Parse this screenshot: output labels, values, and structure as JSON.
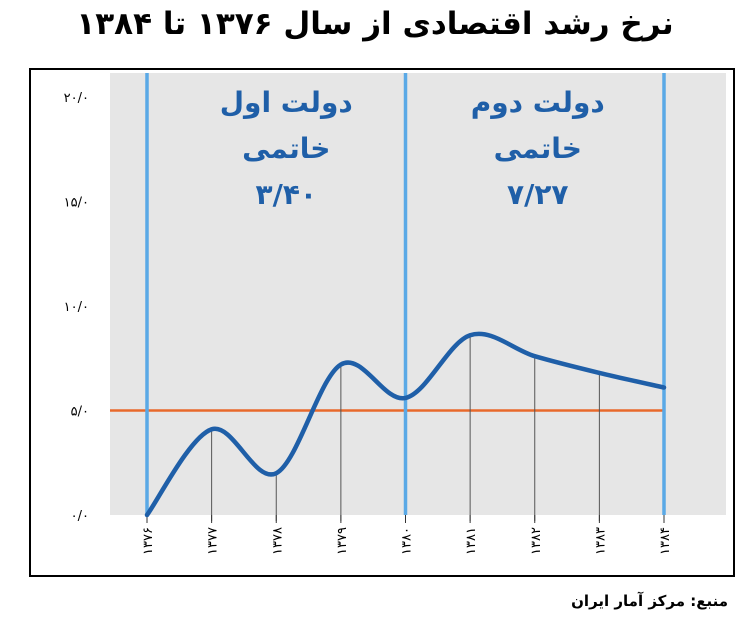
{
  "title": "نرخ رشد اقتصادی از سال ۱۳۷۶ تا ۱۳۸۴",
  "source": "منبع: مرکز آمار ایران",
  "colors": {
    "curve": "#1f5fa8",
    "separator": "#5aa9e6",
    "average_line": "#e8692b",
    "panel": "#e6e6e6",
    "annotation": "#1f5fa8"
  },
  "chart_data": {
    "type": "line",
    "x": [
      "۱۳۷۶",
      "۱۳۷۷",
      "۱۳۷۸",
      "۱۳۷۹",
      "۱۳۸۰",
      "۱۳۸۱",
      "۱۳۸۲",
      "۱۳۸۳",
      "۱۳۸۴"
    ],
    "series": [
      {
        "values": [
          0,
          4.1,
          2.0,
          7.2,
          5.6,
          8.6,
          7.6,
          6.8,
          6.1
        ]
      }
    ],
    "reference_line": 5.0,
    "y_ticks": [
      "۰/۰",
      "۵/۰",
      "۱۰/۰",
      "۱۵/۰",
      "۲۰/۰"
    ],
    "ylim": [
      0,
      20
    ],
    "grid": false,
    "annotations": [
      {
        "lines": [
          "دولت اول",
          "خاتمی",
          "۳/۴۰"
        ]
      },
      {
        "lines": [
          "دولت دوم",
          "خاتمی",
          "۷/۲۷"
        ]
      }
    ]
  }
}
